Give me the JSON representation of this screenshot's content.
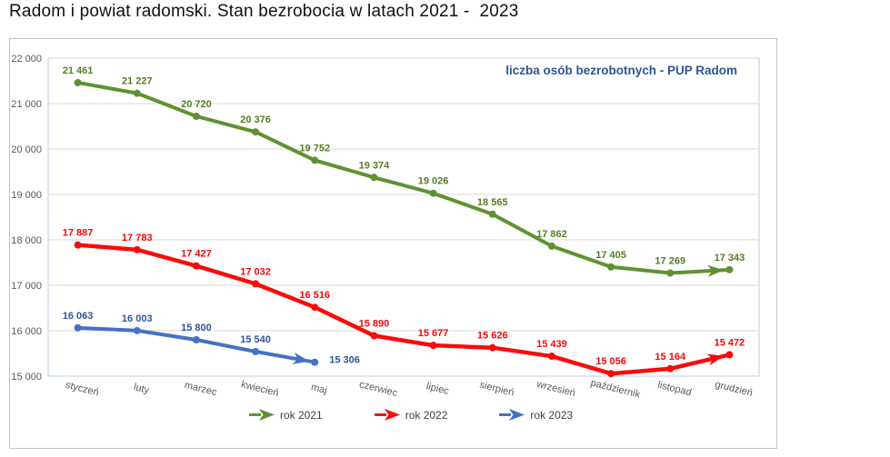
{
  "page": {
    "title": "Radom i powiat radomski. Stan bezrobocia w latach 2021 -  2023"
  },
  "chart_data": {
    "type": "line",
    "title": "Radom i powiat radomski. Stan bezrobocia w latach 2021 -  2023",
    "annotation": "liczba osób bezrobotnych - PUP Radom",
    "categories": [
      "styczeń",
      "luty",
      "marzec",
      "kwiecień",
      "maj",
      "czerwiec",
      "lipiec",
      "sierpień",
      "wrzesień",
      "październik",
      "listopad",
      "grudzień"
    ],
    "series": [
      {
        "name": "rok 2021",
        "color": "#5f9132",
        "label_color": "#557d24",
        "values": [
          21461,
          21227,
          20720,
          20376,
          19752,
          19374,
          19026,
          18565,
          17862,
          17405,
          17269,
          17343
        ]
      },
      {
        "name": "rok 2022",
        "color": "#fb0a0a",
        "label_color": "#f20b0d",
        "values": [
          17887,
          17783,
          17427,
          17032,
          16516,
          15890,
          15677,
          15626,
          15439,
          15056,
          15164,
          15472
        ]
      },
      {
        "name": "rok 2023",
        "color": "#4472c4",
        "label_color": "#2f5597",
        "values": [
          16063,
          16003,
          15800,
          15540,
          15306
        ]
      }
    ],
    "ylim": [
      15000,
      22000
    ],
    "ytick_step": 1000,
    "y_tick_labels": [
      "15 000",
      "16 000",
      "17 000",
      "18 000",
      "19 000",
      "20 000",
      "21 000",
      "22 000"
    ],
    "grid": true,
    "legend_position": "bottom",
    "line_end_style": "arrow"
  },
  "colors": {
    "annotation_text": "#2f5597",
    "axis_line": "#c8d7ec",
    "gridline": "#d9d9d9",
    "tick_label": "#595959",
    "chart_border": "#c3c3c3",
    "legend_text": "#404040"
  }
}
